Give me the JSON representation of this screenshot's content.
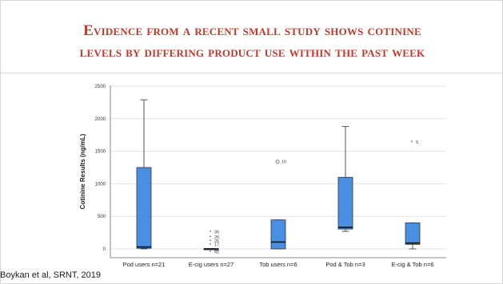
{
  "slide": {
    "title_line1": "Evidence from a recent small study shows cotinine",
    "title_line2": "levels by differing product use within the past week",
    "citation": "Boykan et al, SRNT, 2019",
    "accent_color": "#c0392b"
  },
  "chart_data": {
    "type": "boxplot",
    "ylabel": "Cotinine Results (ng/mL)",
    "xlabel": "",
    "ylim": [
      0,
      2500
    ],
    "yticks": [
      0,
      500,
      1000,
      1500,
      2000,
      2500
    ],
    "grid": true,
    "box_color": "#4a90e2",
    "categories": [
      "Pod users n=21",
      "E-cig users n=27",
      "Tob users n=6",
      "Pod & Tob n=3",
      "E-cig & Tob n=6"
    ],
    "boxes": [
      {
        "min": 0,
        "q1": 10,
        "median": 30,
        "q3": 1250,
        "max": 2290
      },
      {
        "min": 0,
        "q1": 0,
        "median": 0,
        "q3": 5,
        "max": 5
      },
      {
        "min": 0,
        "q1": 0,
        "median": 105,
        "q3": 445,
        "max": 445
      },
      {
        "min": 270,
        "q1": 305,
        "median": 330,
        "q3": 1100,
        "max": 1880
      },
      {
        "min": 0,
        "q1": 70,
        "median": 90,
        "q3": 400,
        "max": 400
      }
    ],
    "outliers": [
      {
        "category": 1,
        "value": 265,
        "label": "36",
        "marker": "star"
      },
      {
        "category": 1,
        "value": 185,
        "label": "26",
        "marker": "star"
      },
      {
        "category": 1,
        "value": 120,
        "label": "25",
        "marker": "star"
      },
      {
        "category": 1,
        "value": 65,
        "label": "17",
        "marker": "star"
      },
      {
        "category": 1,
        "value": -10,
        "label": "22",
        "marker": "star"
      },
      {
        "category": 1,
        "value": -40,
        "label": "42",
        "marker": "star"
      },
      {
        "category": 2,
        "value": 1340,
        "label": "10",
        "marker": "circle"
      },
      {
        "category": 4,
        "value": 1640,
        "label": "9",
        "marker": "star"
      }
    ]
  }
}
